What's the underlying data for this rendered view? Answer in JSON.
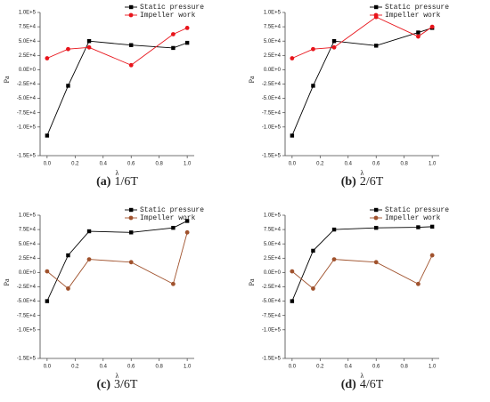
{
  "chart_data": [
    {
      "type": "line",
      "caption_label": "(a)",
      "caption": "1/6T",
      "xlabel": "λ",
      "ylabel": "Pa",
      "legend": "upper right",
      "x": [
        0,
        0.15,
        0.3,
        0.6,
        0.9,
        1.0
      ],
      "series": [
        {
          "name": "Static pressure",
          "color": "#000000",
          "marker": "square",
          "values": [
            -115000,
            -28000,
            50000,
            43000,
            38000,
            47000
          ]
        },
        {
          "name": "Impeller work",
          "color": "#e8141b",
          "marker": "circle",
          "values": [
            20000,
            36000,
            39000,
            8000,
            62000,
            73000
          ]
        }
      ],
      "xlim": [
        -0.05,
        1.05
      ],
      "xticks": [
        {
          "value": 0,
          "label": "0.0"
        },
        0.2,
        0.4,
        0.6,
        0.8,
        {
          "value": 1,
          "label": "1.0"
        }
      ],
      "ylim": [
        -150000,
        100000
      ],
      "yticks": [
        {
          "value": 100000,
          "label": "1.0E+5"
        },
        {
          "value": 75000,
          "label": "7.5E+4"
        },
        {
          "value": 50000,
          "label": "5.0E+4"
        },
        {
          "value": 25000,
          "label": "2.5E+4"
        },
        {
          "value": 0,
          "label": "0.0E+0"
        },
        {
          "value": -25000,
          "label": "-2.5E+4"
        },
        {
          "value": -50000,
          "label": "-5.0E+4"
        },
        {
          "value": -75000,
          "label": "-7.5E+4"
        },
        {
          "value": -100000,
          "label": "-1.0E+5"
        },
        {
          "value": -150000,
          "label": "-1.5E+5"
        }
      ]
    },
    {
      "type": "line",
      "caption_label": "(b)",
      "caption": "2/6T",
      "xlabel": "λ",
      "ylabel": "Pa",
      "legend": "upper right",
      "x": [
        0,
        0.15,
        0.3,
        0.6,
        0.9,
        1.0
      ],
      "series": [
        {
          "name": "Static pressure",
          "color": "#000000",
          "marker": "square",
          "values": [
            -115000,
            -28000,
            50000,
            42000,
            65000,
            73000
          ]
        },
        {
          "name": "Impeller work",
          "color": "#e8141b",
          "marker": "circle",
          "values": [
            20000,
            36000,
            39000,
            92000,
            58000,
            75000
          ]
        }
      ],
      "xlim": [
        -0.05,
        1.05
      ],
      "xticks": [
        {
          "value": 0,
          "label": "0.0"
        },
        0.2,
        0.4,
        0.6,
        0.8,
        {
          "value": 1,
          "label": "1.0"
        }
      ],
      "ylim": [
        -150000,
        100000
      ],
      "yticks": [
        {
          "value": 100000,
          "label": "1.0E+5"
        },
        {
          "value": 75000,
          "label": "7.5E+4"
        },
        {
          "value": 50000,
          "label": "5.0E+4"
        },
        {
          "value": 25000,
          "label": "2.5E+4"
        },
        {
          "value": 0,
          "label": "0.0E+0"
        },
        {
          "value": -25000,
          "label": "-2.5E+4"
        },
        {
          "value": -50000,
          "label": "-5.0E+4"
        },
        {
          "value": -75000,
          "label": "-7.5E+4"
        },
        {
          "value": -100000,
          "label": "-1.0E+5"
        },
        {
          "value": -150000,
          "label": "-1.5E+5"
        }
      ]
    },
    {
      "type": "line",
      "caption_label": "(c)",
      "caption": "3/6T",
      "xlabel": "λ",
      "ylabel": "Pa",
      "legend": "upper right",
      "x": [
        0,
        0.15,
        0.3,
        0.6,
        0.9,
        1.0
      ],
      "series": [
        {
          "name": "Static pressure",
          "color": "#000000",
          "marker": "square",
          "values": [
            -50000,
            30000,
            72000,
            70000,
            78000,
            90000
          ]
        },
        {
          "name": "Impeller work",
          "color": "#a0522d",
          "marker": "circle",
          "values": [
            2000,
            -28000,
            23000,
            18000,
            -20000,
            70000
          ]
        }
      ],
      "xlim": [
        -0.05,
        1.05
      ],
      "xticks": [
        {
          "value": 0,
          "label": "0.0"
        },
        0.2,
        0.4,
        0.6,
        0.8,
        {
          "value": 1,
          "label": "1.0"
        }
      ],
      "ylim": [
        -150000,
        100000
      ],
      "yticks": [
        {
          "value": 100000,
          "label": "1.0E+5"
        },
        {
          "value": 75000,
          "label": "7.5E+4"
        },
        {
          "value": 50000,
          "label": "5.0E+4"
        },
        {
          "value": 25000,
          "label": "2.5E+4"
        },
        {
          "value": 0,
          "label": "0.0E+0"
        },
        {
          "value": -25000,
          "label": "-2.5E+4"
        },
        {
          "value": -50000,
          "label": "-5.0E+4"
        },
        {
          "value": -75000,
          "label": "-7.5E+4"
        },
        {
          "value": -100000,
          "label": "-1.0E+5"
        },
        {
          "value": -150000,
          "label": "-1.5E+5"
        }
      ]
    },
    {
      "type": "line",
      "caption_label": "(d)",
      "caption": "4/6T",
      "xlabel": "λ",
      "ylabel": "Pa",
      "legend": "upper right",
      "x": [
        0,
        0.15,
        0.3,
        0.6,
        0.9,
        1.0
      ],
      "series": [
        {
          "name": "Static pressure",
          "color": "#000000",
          "marker": "square",
          "values": [
            -50000,
            38000,
            75000,
            78000,
            79000,
            80000
          ]
        },
        {
          "name": "Impeller work",
          "color": "#a0522d",
          "marker": "circle",
          "values": [
            2000,
            -28000,
            23000,
            18000,
            -20000,
            30000
          ]
        }
      ],
      "xlim": [
        -0.05,
        1.05
      ],
      "xticks": [
        {
          "value": 0,
          "label": "0.0"
        },
        0.2,
        0.4,
        0.6,
        0.8,
        {
          "value": 1,
          "label": "1.0"
        }
      ],
      "ylim": [
        -150000,
        100000
      ],
      "yticks": [
        {
          "value": 100000,
          "label": "1.0E+5"
        },
        {
          "value": 75000,
          "label": "7.5E+4"
        },
        {
          "value": 50000,
          "label": "5.0E+4"
        },
        {
          "value": 25000,
          "label": "2.5E+4"
        },
        {
          "value": 0,
          "label": "0.0E+0"
        },
        {
          "value": -25000,
          "label": "-2.5E+4"
        },
        {
          "value": -50000,
          "label": "-5.0E+4"
        },
        {
          "value": -75000,
          "label": "-7.5E+4"
        },
        {
          "value": -100000,
          "label": "-1.0E+5"
        },
        {
          "value": -150000,
          "label": "-1.5E+5"
        }
      ]
    }
  ]
}
